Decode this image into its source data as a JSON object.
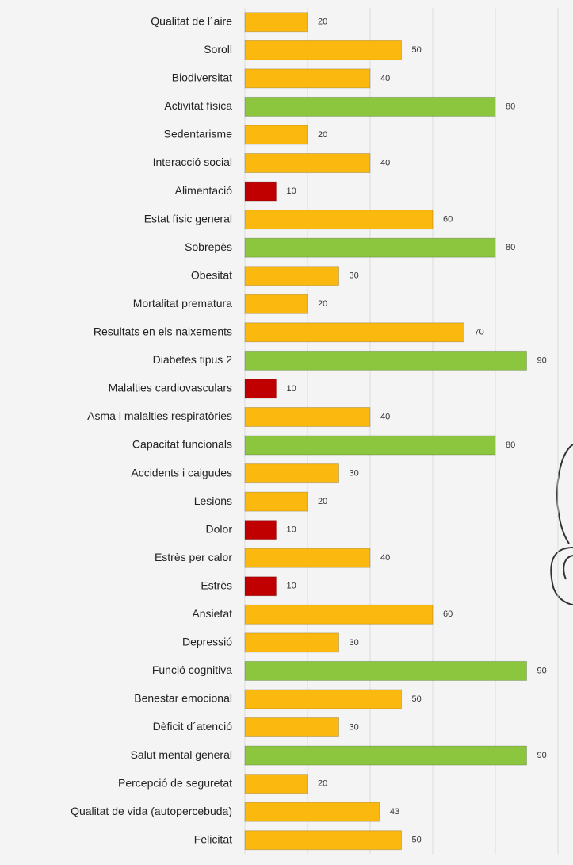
{
  "chart_data": {
    "type": "bar",
    "orientation": "horizontal",
    "categories": [
      "Qualitat de l´aire",
      "Soroll",
      "Biodiversitat",
      "Activitat física",
      "Sedentarisme",
      "Interacció social",
      "Alimentació",
      "Estat físic general",
      "Sobrepès",
      "Obesitat",
      "Mortalitat prematura",
      "Resultats en els naixements",
      "Diabetes tipus 2",
      "Malalties cardiovasculars",
      "Asma i malalties respiratòries",
      "Capacitat funcionals",
      "Accidents i caigudes",
      "Lesions",
      "Dolor",
      "Estrès per calor",
      "Estrès",
      "Ansietat",
      "Depressió",
      "Funció cognitiva",
      "Benestar emocional",
      "Dèficit d´atenció",
      "Salut mental general",
      "Percepció de seguretat",
      "Qualitat de vida (autopercebuda)",
      "Felicitat"
    ],
    "values": [
      20,
      50,
      40,
      80,
      20,
      40,
      10,
      60,
      80,
      30,
      20,
      70,
      90,
      10,
      40,
      80,
      30,
      20,
      10,
      40,
      10,
      60,
      30,
      90,
      50,
      30,
      90,
      20,
      43,
      50
    ],
    "colors": [
      "#fbb80f",
      "#fbb80f",
      "#fbb80f",
      "#8cc63f",
      "#fbb80f",
      "#fbb80f",
      "#c00000",
      "#fbb80f",
      "#8cc63f",
      "#fbb80f",
      "#fbb80f",
      "#fbb80f",
      "#8cc63f",
      "#c00000",
      "#fbb80f",
      "#8cc63f",
      "#fbb80f",
      "#fbb80f",
      "#c00000",
      "#fbb80f",
      "#c00000",
      "#fbb80f",
      "#fbb80f",
      "#8cc63f",
      "#fbb80f",
      "#fbb80f",
      "#8cc63f",
      "#fbb80f",
      "#fbb80f",
      "#fbb80f"
    ],
    "xlim": [
      0,
      100
    ],
    "xticks": [
      0,
      20,
      40,
      60,
      80,
      100
    ],
    "grid": true
  }
}
